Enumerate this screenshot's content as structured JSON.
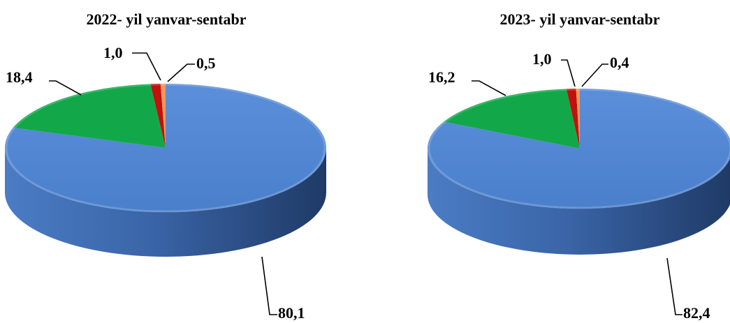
{
  "chart_data": [
    {
      "type": "pie",
      "title": "2022- yil yanvar-sentabr",
      "slices": [
        {
          "value": 80.1,
          "label": "80,1",
          "color": "#4F83D0"
        },
        {
          "value": 18.4,
          "label": "18,4",
          "color": "#12A84A"
        },
        {
          "value": 1.0,
          "label": "1,0",
          "color": "#C0110D"
        },
        {
          "value": 0.5,
          "label": "0,5",
          "color": "#F0995A"
        }
      ]
    },
    {
      "type": "pie",
      "title": "2023- yil yanvar-sentabr",
      "slices": [
        {
          "value": 82.4,
          "label": "82,4",
          "color": "#4F83D0"
        },
        {
          "value": 16.2,
          "label": "16,2",
          "color": "#12A84A"
        },
        {
          "value": 1.0,
          "label": "1,0",
          "color": "#C0110D"
        },
        {
          "value": 0.4,
          "label": "0,4",
          "color": "#F0995A"
        }
      ]
    }
  ]
}
